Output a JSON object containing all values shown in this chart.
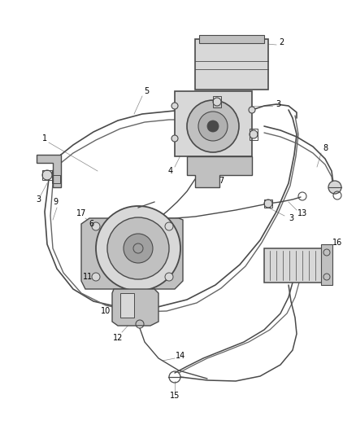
{
  "bg_color": "#ffffff",
  "line_color": "#4a4a4a",
  "fill_light": "#d8d8d8",
  "fill_mid": "#c0c0c0",
  "fill_dark": "#a0a0a0",
  "label_color": "#000000",
  "leader_color": "#888888",
  "lw_wire": 1.1,
  "lw_part": 1.0,
  "lw_leader": 0.5,
  "label_fontsize": 7.0,
  "fig_w": 4.39,
  "fig_h": 5.33,
  "dpi": 100
}
